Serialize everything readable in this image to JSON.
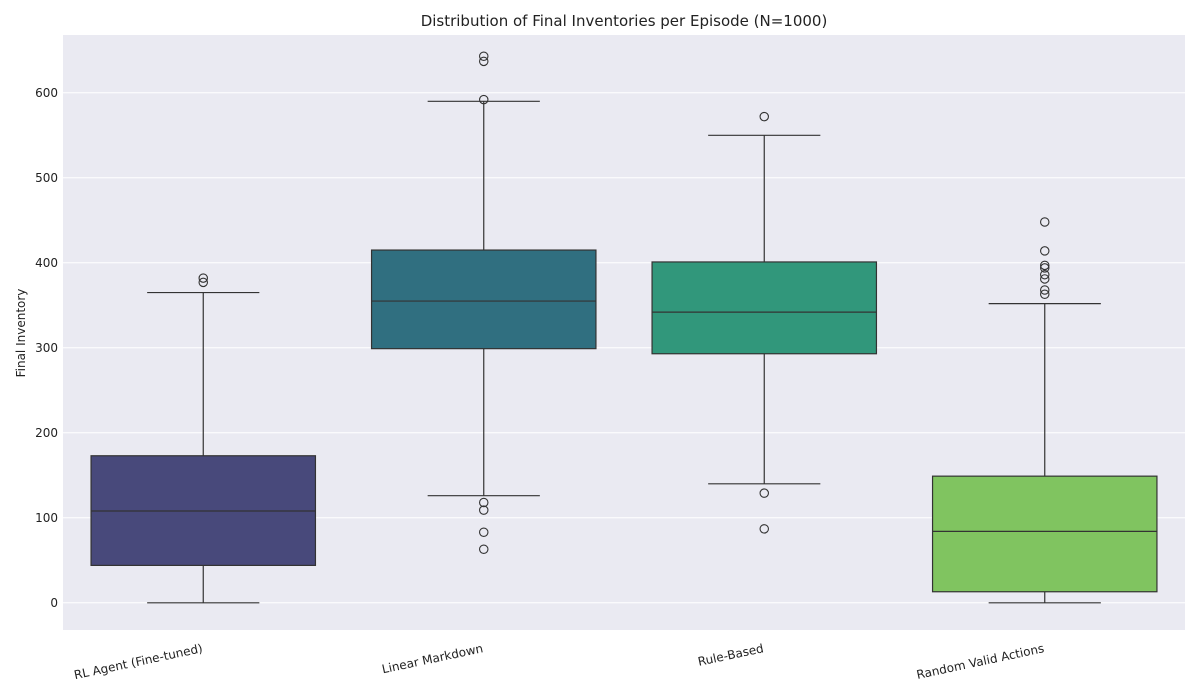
{
  "chart_data": {
    "type": "box",
    "title": "Distribution of Final Inventories per Episode (N=1000)",
    "xlabel": "",
    "ylabel": "Final Inventory",
    "ylim": [
      -32,
      668
    ],
    "yticks": [
      0,
      100,
      200,
      300,
      400,
      500,
      600
    ],
    "grid": true,
    "categories": [
      "RL Agent (Fine-tuned)",
      "Linear Markdown",
      "Rule-Based",
      "Random Valid Actions"
    ],
    "boxes": [
      {
        "name": "RL Agent (Fine-tuned)",
        "whisker_low": 0,
        "q1": 44,
        "median": 108,
        "q3": 173,
        "whisker_high": 365,
        "outliers": [
          377,
          382
        ],
        "color": "#48497b"
      },
      {
        "name": "Linear Markdown",
        "whisker_low": 126,
        "q1": 299,
        "median": 355,
        "q3": 415,
        "whisker_high": 590,
        "outliers": [
          63,
          83,
          109,
          118,
          592,
          637,
          643
        ],
        "color": "#306f80"
      },
      {
        "name": "Rule-Based",
        "whisker_low": 140,
        "q1": 293,
        "median": 342,
        "q3": 401,
        "whisker_high": 550,
        "outliers": [
          87,
          129,
          572
        ],
        "color": "#31977b"
      },
      {
        "name": "Random Valid Actions",
        "whisker_low": 0,
        "q1": 13,
        "median": 84,
        "q3": 149,
        "whisker_high": 352,
        "outliers": [
          363,
          368,
          381,
          386,
          394,
          397,
          414,
          448
        ],
        "color": "#80c460"
      }
    ]
  }
}
